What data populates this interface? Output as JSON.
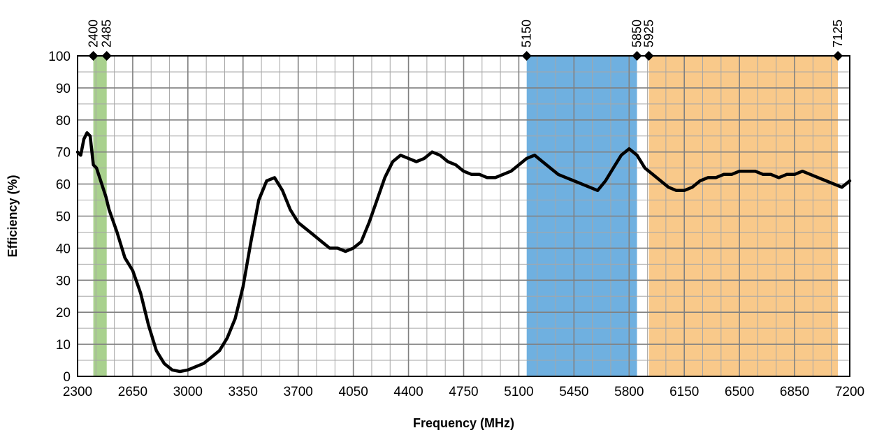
{
  "chart_data": {
    "type": "line",
    "xlabel": "Frequency (MHz)",
    "ylabel": "Efficiency (%)",
    "xlim": [
      2300,
      7200
    ],
    "ylim": [
      0,
      100
    ],
    "x_ticks": [
      2300,
      2650,
      3000,
      3350,
      3700,
      4050,
      4400,
      4750,
      5100,
      5450,
      5800,
      6150,
      6500,
      6850,
      7200
    ],
    "y_ticks": [
      0,
      10,
      20,
      30,
      40,
      50,
      60,
      70,
      80,
      90,
      100
    ],
    "grid": true,
    "bands": [
      {
        "from": 2400,
        "to": 2485,
        "color": "#a9d18e"
      },
      {
        "from": 5150,
        "to": 5850,
        "color": "#6fb0e0"
      },
      {
        "from": 5925,
        "to": 7125,
        "color": "#f9c98a"
      }
    ],
    "markers": [
      {
        "x": 2400,
        "label": "2400"
      },
      {
        "x": 2485,
        "label": "2485"
      },
      {
        "x": 5150,
        "label": "5150"
      },
      {
        "x": 5850,
        "label": "5850"
      },
      {
        "x": 5925,
        "label": "5925"
      },
      {
        "x": 7125,
        "label": "7125"
      }
    ],
    "series": [
      {
        "color": "#000000",
        "x": [
          2300,
          2320,
          2340,
          2360,
          2380,
          2400,
          2420,
          2440,
          2460,
          2480,
          2500,
          2550,
          2600,
          2650,
          2700,
          2750,
          2800,
          2850,
          2900,
          2950,
          3000,
          3050,
          3100,
          3150,
          3200,
          3250,
          3300,
          3350,
          3400,
          3450,
          3500,
          3550,
          3600,
          3650,
          3700,
          3750,
          3800,
          3850,
          3900,
          3950,
          4000,
          4050,
          4100,
          4150,
          4200,
          4250,
          4300,
          4350,
          4400,
          4450,
          4500,
          4550,
          4600,
          4650,
          4700,
          4750,
          4800,
          4850,
          4900,
          4950,
          5000,
          5050,
          5100,
          5150,
          5200,
          5250,
          5300,
          5350,
          5400,
          5450,
          5500,
          5550,
          5600,
          5650,
          5700,
          5750,
          5800,
          5850,
          5900,
          5950,
          6000,
          6050,
          6100,
          6150,
          6200,
          6250,
          6300,
          6350,
          6400,
          6450,
          6500,
          6550,
          6600,
          6650,
          6700,
          6750,
          6800,
          6850,
          6900,
          6950,
          7000,
          7050,
          7100,
          7150,
          7200
        ],
        "y": [
          70,
          69,
          74,
          76,
          75,
          66,
          65,
          62,
          59,
          56,
          52,
          45,
          37,
          33,
          26,
          16,
          8,
          4,
          2,
          1.5,
          2,
          3,
          4,
          6,
          8,
          12,
          18,
          28,
          42,
          55,
          61,
          62,
          58,
          52,
          48,
          46,
          44,
          42,
          40,
          40,
          39,
          40,
          42,
          48,
          55,
          62,
          67,
          69,
          68,
          67,
          68,
          70,
          69,
          67,
          66,
          64,
          63,
          63,
          62,
          62,
          63,
          64,
          66,
          68,
          69,
          67,
          65,
          63,
          62,
          61,
          60,
          59,
          58,
          61,
          65,
          69,
          71,
          69,
          65,
          63,
          61,
          59,
          58,
          58,
          59,
          61,
          62,
          62,
          63,
          63,
          64,
          64,
          64,
          63,
          63,
          62,
          63,
          63,
          64,
          63,
          62,
          61,
          60,
          59,
          61
        ]
      }
    ]
  }
}
